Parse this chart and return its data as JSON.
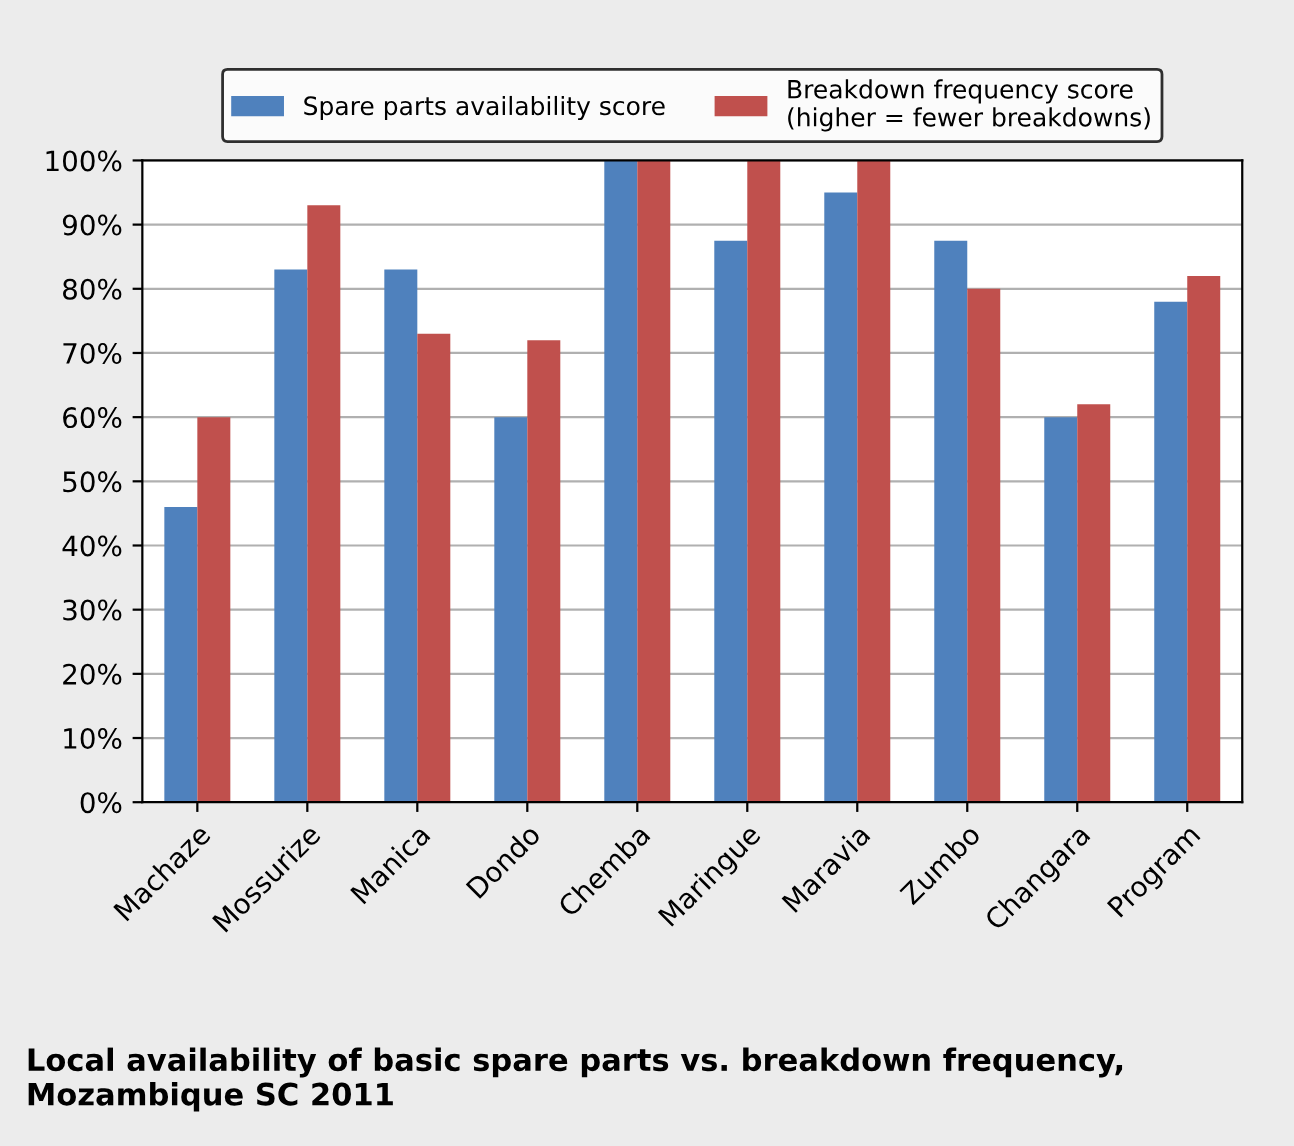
{
  "chart_data": {
    "type": "bar",
    "title": "Local availability of basic spare parts vs. breakdown frequency,\nMozambique SC 2011",
    "categories": [
      "Machaze",
      "Mossurize",
      "Manica",
      "Dondo",
      "Chemba",
      "Maringue",
      "Maravia",
      "Zumbo",
      "Changara",
      "Program"
    ],
    "series": [
      {
        "name": "Spare parts availability score",
        "color": "#4f81bd",
        "values": [
          46,
          83,
          83,
          60,
          100,
          87.5,
          95,
          87.5,
          60,
          78
        ]
      },
      {
        "name": "Breakdown frequency score\n(higher = fewer breakdowns)",
        "color": "#c0504d",
        "values": [
          60,
          93,
          73,
          72,
          100,
          100,
          100,
          80,
          62,
          82
        ]
      }
    ],
    "ylim": [
      0,
      100
    ],
    "yticks": [
      {
        "value": 0,
        "label": "0%"
      },
      {
        "value": 10,
        "label": "10%"
      },
      {
        "value": 20,
        "label": "20%"
      },
      {
        "value": 30,
        "label": "30%"
      },
      {
        "value": 40,
        "label": "40%"
      },
      {
        "value": 50,
        "label": "50%"
      },
      {
        "value": 60,
        "label": "60%"
      },
      {
        "value": 70,
        "label": "70%"
      },
      {
        "value": 80,
        "label": "80%"
      },
      {
        "value": 90,
        "label": "90%"
      },
      {
        "value": 100,
        "label": "100%"
      }
    ],
    "grid": "y",
    "legend": "top"
  }
}
